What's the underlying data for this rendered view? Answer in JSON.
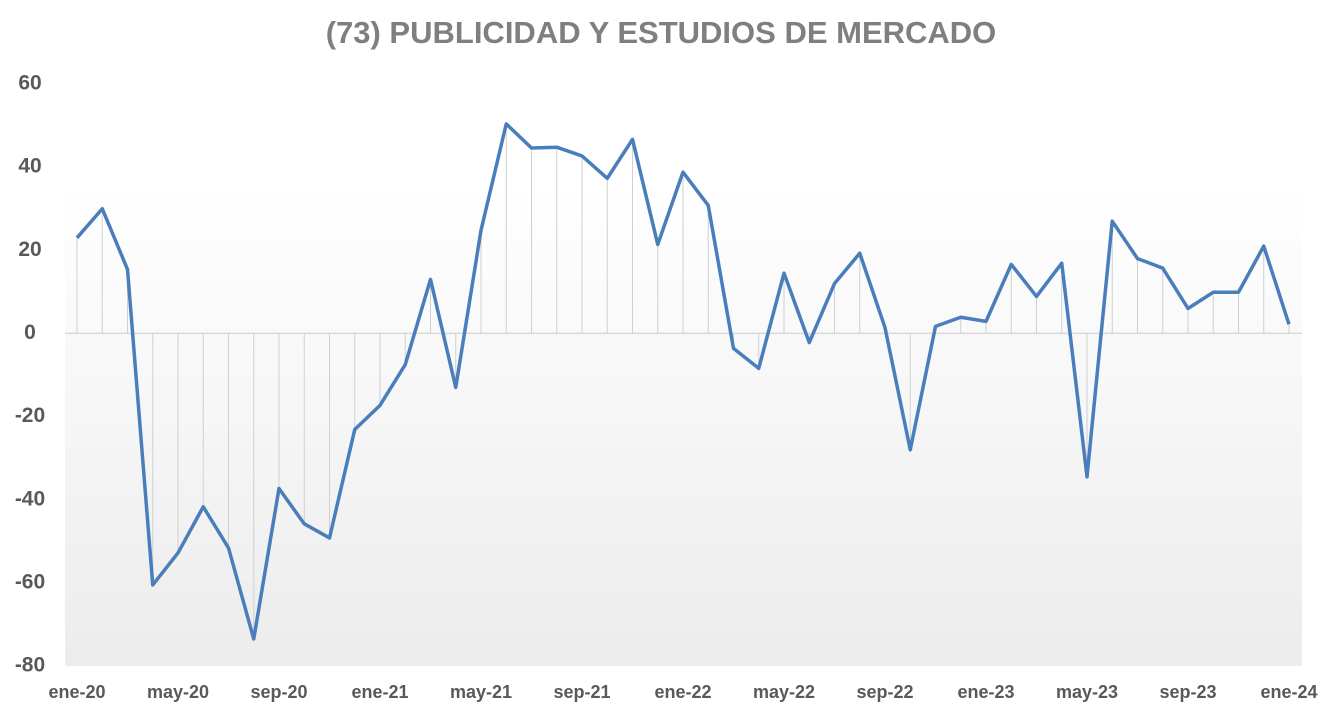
{
  "chart_data": {
    "type": "line",
    "title": "(73) PUBLICIDAD Y ESTUDIOS DE MERCADO",
    "categories": [
      "ene-20",
      null,
      null,
      null,
      "may-20",
      null,
      null,
      null,
      "sep-20",
      null,
      null,
      null,
      "ene-21",
      null,
      null,
      null,
      "may-21",
      null,
      null,
      null,
      "sep-21",
      null,
      null,
      null,
      "ene-22",
      null,
      null,
      null,
      "may-22",
      null,
      null,
      null,
      "sep-22",
      null,
      null,
      null,
      "ene-23",
      null,
      null,
      null,
      "may-23",
      null,
      null,
      null,
      "sep-23",
      null,
      null,
      null,
      "ene-24"
    ],
    "series": [
      {
        "name": "(73) PUBLICIDAD Y ESTUDIOS DE MERCADO",
        "color": "#4a7ebb",
        "values": [
          23,
          30,
          15.4,
          -60.5,
          -52.8,
          -41.7,
          -51.6,
          -73.5,
          -37.3,
          -45.8,
          -49.2,
          -23.1,
          -17.3,
          -7.5,
          13,
          -13,
          24.8,
          50.4,
          44.6,
          44.8,
          42.7,
          37.3,
          46.7,
          21.4,
          38.8,
          30.8,
          -3.6,
          -8.4,
          14.5,
          -2.2,
          12,
          19.3,
          1.4,
          -28,
          1.7,
          3.9,
          2.9,
          16.6,
          8.9,
          16.9,
          -34.5,
          27,
          18,
          15.7,
          6,
          9.9,
          9.9,
          21,
          2.2
        ]
      }
    ],
    "ylim": [
      -80,
      60
    ],
    "yticks": [
      -80,
      -60,
      -40,
      -20,
      0,
      20,
      40,
      60
    ],
    "drop_lines": true,
    "drop_line_color": "#d0d0d0"
  }
}
